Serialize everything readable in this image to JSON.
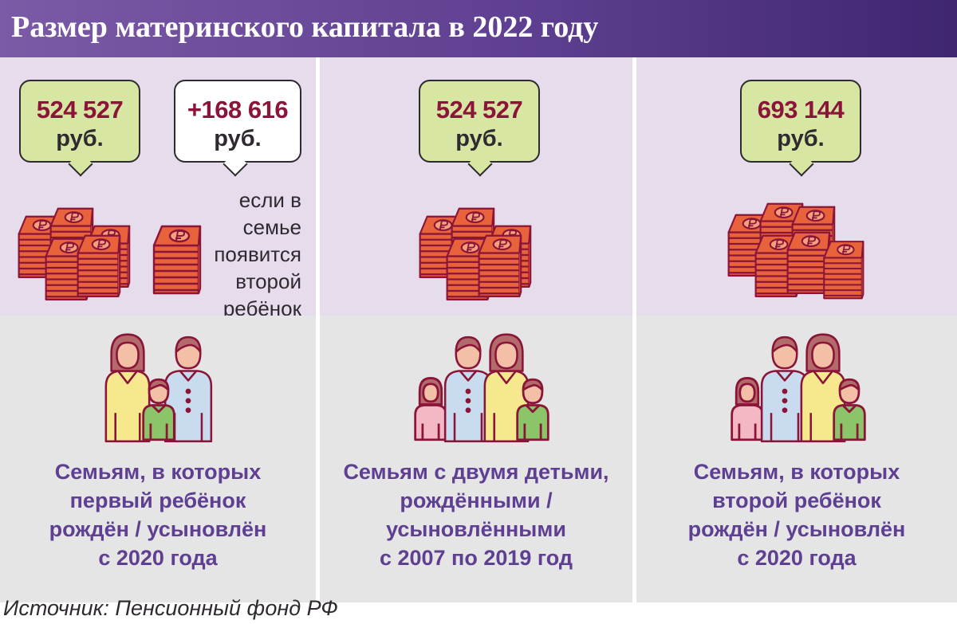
{
  "header": {
    "title": "Размер материнского капитала в 2022 году"
  },
  "panels": [
    {
      "bubbles": [
        {
          "amount": "524 527",
          "unit": "руб."
        },
        {
          "amount": "+168 616",
          "unit": "руб."
        }
      ],
      "note": [
        "если в семье",
        "появится",
        "второй",
        "ребёнок"
      ],
      "caption": [
        "Семьям, в которых",
        "первый ребёнок",
        "рождён / усыновлён",
        "с 2020 года"
      ]
    },
    {
      "bubbles": [
        {
          "amount": "524 527",
          "unit": "руб."
        }
      ],
      "caption": [
        "Семьям с двумя детьми,",
        "рождёнными /",
        "усыновлёнными",
        "с 2007 по 2019 год"
      ]
    },
    {
      "bubbles": [
        {
          "amount": "693 144",
          "unit": "руб."
        }
      ],
      "caption": [
        "Семьям, в которых",
        "второй ребёнок",
        "рождён / усыновлён",
        "с 2020 года"
      ]
    }
  ],
  "source": "Источник: Пенсионный фонд РФ",
  "icons": [
    "ruble-money-stack-icon",
    "family-icon"
  ],
  "colors": {
    "header": "#5e3f91",
    "amount": "#8a1538",
    "caption": "#5e3f91",
    "panel_top": "#e6dcec",
    "panel_bottom": "#e5e5e5",
    "bubble_green": "#d7e6a2",
    "money": "#e8623b",
    "person_woman": "#f6e88c",
    "person_man": "#c9dcef",
    "person_boy": "#8cc46a",
    "person_girl": "#f4b8c4",
    "skin": "#f3c0a7",
    "hair": "#b36a6a",
    "outline": "#8a1538"
  }
}
